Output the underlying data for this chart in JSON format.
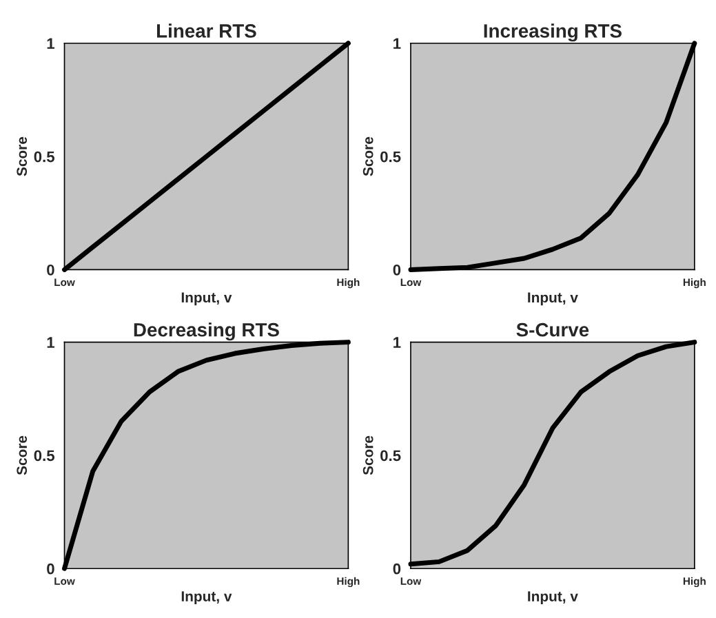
{
  "chart_data": [
    {
      "type": "line",
      "title": "Linear RTS",
      "xlabel": "Input, v",
      "ylabel": "Score",
      "categories": [
        "Low",
        null,
        null,
        null,
        null,
        null,
        null,
        null,
        null,
        null,
        "High"
      ],
      "series": [
        {
          "color": "#000000",
          "values": [
            0,
            0.1,
            0.2,
            0.3,
            0.4,
            0.5,
            0.6,
            0.7,
            0.8,
            0.9,
            1
          ]
        }
      ],
      "ylim": [
        0,
        1
      ],
      "yticks": [
        0,
        0.5,
        1
      ]
    },
    {
      "type": "line",
      "title": "Increasing RTS",
      "xlabel": "Input, v",
      "ylabel": "Score",
      "categories": [
        "Low",
        null,
        null,
        null,
        null,
        null,
        null,
        null,
        null,
        null,
        "High"
      ],
      "series": [
        {
          "color": "#000000",
          "values": [
            0,
            0.005,
            0.01,
            0.03,
            0.05,
            0.09,
            0.14,
            0.25,
            0.42,
            0.65,
            1
          ]
        }
      ],
      "ylim": [
        0,
        1
      ],
      "yticks": [
        0,
        0.5,
        1
      ]
    },
    {
      "type": "line",
      "title": "Decreasing RTS",
      "xlabel": "Input, v",
      "ylabel": "Score",
      "categories": [
        "Low",
        null,
        null,
        null,
        null,
        null,
        null,
        null,
        null,
        null,
        "High"
      ],
      "series": [
        {
          "color": "#000000",
          "values": [
            0,
            0.43,
            0.65,
            0.78,
            0.87,
            0.92,
            0.95,
            0.97,
            0.985,
            0.995,
            1
          ]
        }
      ],
      "ylim": [
        0,
        1
      ],
      "yticks": [
        0,
        0.5,
        1
      ]
    },
    {
      "type": "line",
      "title": "S-Curve",
      "xlabel": "Input, v",
      "ylabel": "Score",
      "categories": [
        "Low",
        null,
        null,
        null,
        null,
        null,
        null,
        null,
        null,
        null,
        "High"
      ],
      "series": [
        {
          "color": "#000000",
          "values": [
            0.02,
            0.03,
            0.08,
            0.19,
            0.37,
            0.62,
            0.78,
            0.87,
            0.94,
            0.98,
            1
          ]
        }
      ],
      "ylim": [
        0,
        1
      ],
      "yticks": [
        0,
        0.5,
        1
      ]
    }
  ]
}
